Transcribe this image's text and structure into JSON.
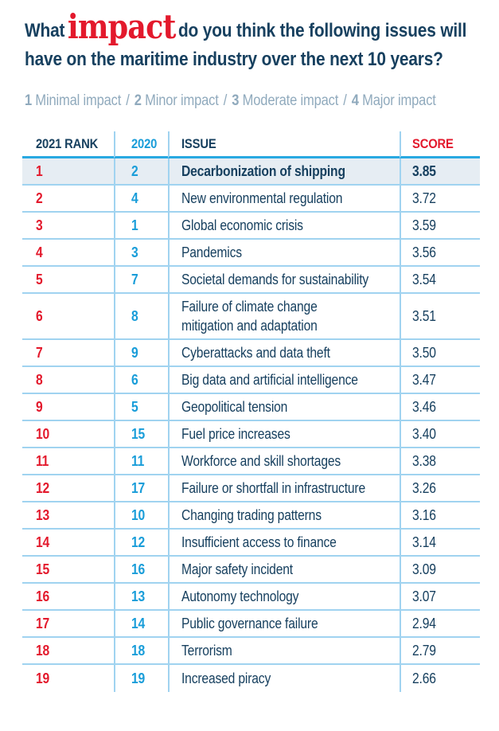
{
  "colors": {
    "navy": "#17405f",
    "red": "#e3192c",
    "cyan": "#199dd9",
    "line": "#a0d3f0",
    "accent": "#29a9e1",
    "hl-bg": "#e6edf3",
    "legend": "#90aabd"
  },
  "title": {
    "line1_pre": "What",
    "line1_highlight": "impact",
    "line1_post": "do you think the following issues will",
    "line2": "have on the maritime industry over the next 10 years?"
  },
  "legend": {
    "separator": "/",
    "items": [
      {
        "num": "1",
        "label": "Minimal impact"
      },
      {
        "num": "2",
        "label": "Minor impact"
      },
      {
        "num": "3",
        "label": "Moderate impact"
      },
      {
        "num": "4",
        "label": "Major impact"
      }
    ]
  },
  "table": {
    "headers": {
      "rank_2021": "2021 RANK",
      "rank_2020": "2020",
      "issue": "ISSUE",
      "score": "SCORE"
    },
    "rows": [
      {
        "rank_2021": "1",
        "rank_2020": "2",
        "issue": "Decarbonization of shipping",
        "score": "3.85",
        "highlight": true
      },
      {
        "rank_2021": "2",
        "rank_2020": "4",
        "issue": "New environmental regulation",
        "score": "3.72",
        "highlight": false
      },
      {
        "rank_2021": "3",
        "rank_2020": "1",
        "issue": "Global economic crisis",
        "score": "3.59",
        "highlight": false
      },
      {
        "rank_2021": "4",
        "rank_2020": "3",
        "issue": "Pandemics",
        "score": "3.56",
        "highlight": false
      },
      {
        "rank_2021": "5",
        "rank_2020": "7",
        "issue": "Societal demands for sustainability",
        "score": "3.54",
        "highlight": false
      },
      {
        "rank_2021": "6",
        "rank_2020": "8",
        "issue": "Failure of climate change\nmitigation and adaptation",
        "score": "3.51",
        "highlight": false
      },
      {
        "rank_2021": "7",
        "rank_2020": "9",
        "issue": "Cyberattacks and data theft",
        "score": "3.50",
        "highlight": false
      },
      {
        "rank_2021": "8",
        "rank_2020": "6",
        "issue": "Big data and artificial intelligence",
        "score": "3.47",
        "highlight": false
      },
      {
        "rank_2021": "9",
        "rank_2020": "5",
        "issue": "Geopolitical tension",
        "score": "3.46",
        "highlight": false
      },
      {
        "rank_2021": "10",
        "rank_2020": "15",
        "issue": "Fuel price increases",
        "score": "3.40",
        "highlight": false
      },
      {
        "rank_2021": "11",
        "rank_2020": "11",
        "issue": "Workforce and skill shortages",
        "score": "3.38",
        "highlight": false
      },
      {
        "rank_2021": "12",
        "rank_2020": "17",
        "issue": "Failure or shortfall in infrastructure",
        "score": "3.26",
        "highlight": false
      },
      {
        "rank_2021": "13",
        "rank_2020": "10",
        "issue": "Changing trading patterns",
        "score": "3.16",
        "highlight": false
      },
      {
        "rank_2021": "14",
        "rank_2020": "12",
        "issue": "Insufficient access to finance",
        "score": "3.14",
        "highlight": false
      },
      {
        "rank_2021": "15",
        "rank_2020": "16",
        "issue": "Major safety incident",
        "score": "3.09",
        "highlight": false
      },
      {
        "rank_2021": "16",
        "rank_2020": "13",
        "issue": "Autonomy technology",
        "score": "3.07",
        "highlight": false
      },
      {
        "rank_2021": "17",
        "rank_2020": "14",
        "issue": "Public governance failure",
        "score": "2.94",
        "highlight": false
      },
      {
        "rank_2021": "18",
        "rank_2020": "18",
        "issue": "Terrorism",
        "score": "2.79",
        "highlight": false
      },
      {
        "rank_2021": "19",
        "rank_2020": "19",
        "issue": "Increased piracy",
        "score": "2.66",
        "highlight": false
      }
    ]
  }
}
